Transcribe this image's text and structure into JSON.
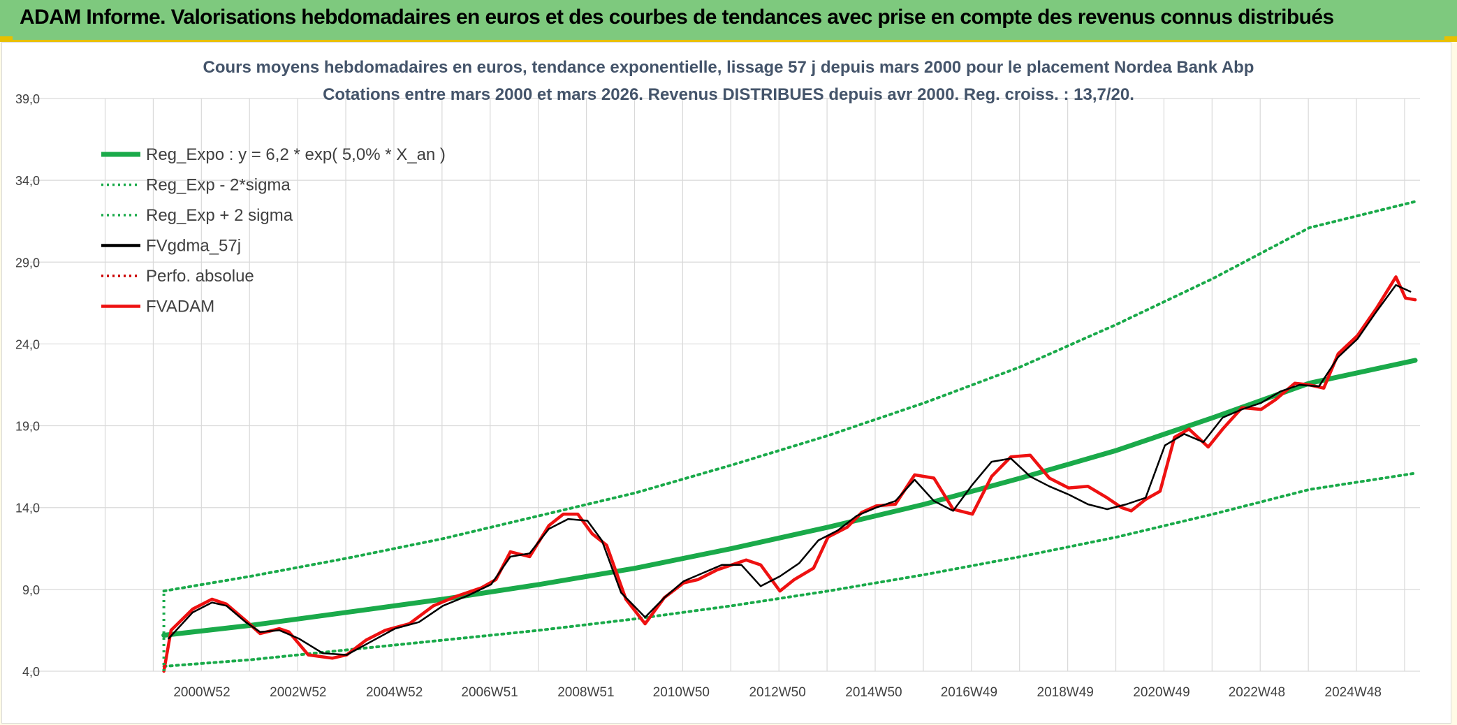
{
  "header": {
    "title": "ADAM Informe. Valorisations hebdomadaires en euros et des courbes de tendances avec prise en compte des revenus connus distribués",
    "color": "#7ec97e"
  },
  "colors": {
    "reg_expo": "#1aaa4a",
    "sigma_bands": "#1aaa4a",
    "gdma": "#000000",
    "fvadam": "#ee1111",
    "perfo": "#cc0000",
    "grid": "#d9d9d9",
    "text": "#404040",
    "title_text": "#44546a"
  },
  "chart_data": {
    "type": "line",
    "title": "Cours moyens hebdomadaires en euros, tendance exponentielle, lissage 57 j depuis mars 2000 pour le placement Nordea Bank Abp",
    "subtitle": "Cotations entre mars 2000 et mars 2026. Revenus DISTRIBUES depuis avr 2000. Reg. croiss. : 13,7/20.",
    "xlabel": "",
    "ylabel": "",
    "ylim": [
      4.0,
      39.0
    ],
    "yticks": [
      "4,0",
      "9,0",
      "14,0",
      "19,0",
      "24,0",
      "29,0",
      "34,0",
      "39,0"
    ],
    "yvalues": [
      4,
      9,
      14,
      19,
      24,
      29,
      34,
      39
    ],
    "xlim": [
      1998.0,
      2026.3
    ],
    "xticks": [
      {
        "label": "2000W52",
        "x": 2000.99
      },
      {
        "label": "2002W52",
        "x": 2002.99
      },
      {
        "label": "2004W52",
        "x": 2004.99
      },
      {
        "label": "2006W51",
        "x": 2006.97
      },
      {
        "label": "2008W51",
        "x": 2008.97
      },
      {
        "label": "2010W50",
        "x": 2010.95
      },
      {
        "label": "2012W50",
        "x": 2012.95
      },
      {
        "label": "2014W50",
        "x": 2014.95
      },
      {
        "label": "2016W49",
        "x": 2016.93
      },
      {
        "label": "2018W49",
        "x": 2018.93
      },
      {
        "label": "2020W49",
        "x": 2020.93
      },
      {
        "label": "2022W48",
        "x": 2022.91
      },
      {
        "label": "2024W48",
        "x": 2024.91
      }
    ],
    "grid": true,
    "legend_position": "top-left",
    "legend": [
      {
        "name": "Reg_Expo : y = 6,2 * exp( 5,0% *  X_an )",
        "style": "thick-solid",
        "color": "#1aaa4a"
      },
      {
        "name": "Reg_Exp - 2*sigma",
        "style": "dotted",
        "color": "#1aaa4a"
      },
      {
        "name": "Reg_Exp + 2 sigma",
        "style": "dotted",
        "color": "#1aaa4a"
      },
      {
        "name": "FVgdma_57j",
        "style": "solid",
        "color": "#000000"
      },
      {
        "name": "Perfo. absolue",
        "style": "dotted",
        "color": "#cc0000"
      },
      {
        "name": "FVADAM",
        "style": "solid",
        "color": "#ee1111"
      }
    ],
    "series": [
      {
        "name": "Reg_Expo : y = 6,2 * exp( 5,0% *  X_an )",
        "x": [
          2000.2,
          2002.0,
          2004.0,
          2006.0,
          2008.0,
          2010.0,
          2012.0,
          2014.0,
          2016.0,
          2018.0,
          2020.0,
          2022.0,
          2024.0,
          2026.2
        ],
        "values": [
          6.2,
          6.8,
          7.6,
          8.4,
          9.3,
          10.3,
          11.5,
          12.8,
          14.2,
          15.8,
          17.5,
          19.5,
          21.6,
          23.0
        ]
      },
      {
        "name": "Reg_Exp - 2*sigma",
        "x": [
          2000.2,
          2002.0,
          2004.0,
          2006.0,
          2008.0,
          2010.0,
          2012.0,
          2014.0,
          2016.0,
          2018.0,
          2020.0,
          2022.0,
          2024.0,
          2026.2
        ],
        "values": [
          4.3,
          4.7,
          5.3,
          5.9,
          6.5,
          7.2,
          8.0,
          8.9,
          9.9,
          11.0,
          12.2,
          13.6,
          15.1,
          16.1
        ]
      },
      {
        "name": "Reg_Exp + 2 sigma",
        "x": [
          2000.2,
          2002.0,
          2004.0,
          2006.0,
          2008.0,
          2010.0,
          2012.0,
          2014.0,
          2016.0,
          2018.0,
          2020.0,
          2022.0,
          2024.0,
          2026.2
        ],
        "values": [
          8.9,
          9.8,
          10.9,
          12.1,
          13.5,
          14.9,
          16.6,
          18.4,
          20.4,
          22.6,
          25.2,
          28.0,
          31.1,
          32.7
        ]
      },
      {
        "name": "FVADAM",
        "x": [
          2000.2,
          2000.35,
          2000.8,
          2001.2,
          2001.5,
          2001.9,
          2002.2,
          2002.6,
          2002.8,
          2003.2,
          2003.7,
          2004.0,
          2004.4,
          2004.8,
          2005.3,
          2005.8,
          2006.3,
          2006.8,
          2007.1,
          2007.4,
          2007.8,
          2008.2,
          2008.5,
          2008.8,
          2009.1,
          2009.4,
          2009.8,
          2010.2,
          2010.6,
          2011.0,
          2011.3,
          2011.7,
          2012.0,
          2012.3,
          2012.6,
          2013.0,
          2013.3,
          2013.7,
          2014.0,
          2014.4,
          2014.7,
          2015.0,
          2015.4,
          2015.8,
          2016.2,
          2016.6,
          2017.0,
          2017.4,
          2017.8,
          2018.2,
          2018.6,
          2019.0,
          2019.4,
          2019.8,
          2020.1,
          2020.3,
          2020.6,
          2020.9,
          2021.2,
          2021.5,
          2021.9,
          2022.2,
          2022.6,
          2023.0,
          2023.3,
          2023.7,
          2024.0,
          2024.3,
          2024.6,
          2025.0,
          2025.4,
          2025.8,
          2026.0,
          2026.2
        ],
        "values": [
          4.0,
          6.5,
          7.8,
          8.4,
          8.1,
          7.1,
          6.3,
          6.6,
          6.4,
          5.0,
          4.8,
          5.0,
          5.9,
          6.5,
          6.9,
          8.0,
          8.6,
          9.1,
          9.6,
          11.3,
          11.0,
          12.9,
          13.6,
          13.6,
          12.4,
          11.7,
          8.4,
          6.9,
          8.5,
          9.4,
          9.6,
          10.2,
          10.5,
          10.8,
          10.5,
          8.9,
          9.6,
          10.3,
          12.2,
          12.8,
          13.7,
          14.1,
          14.2,
          16.0,
          15.8,
          13.9,
          13.6,
          15.9,
          17.1,
          17.2,
          15.8,
          15.2,
          15.3,
          14.6,
          14.0,
          13.8,
          14.5,
          15.0,
          18.3,
          18.8,
          17.7,
          18.8,
          20.1,
          20.0,
          20.6,
          21.6,
          21.5,
          21.3,
          23.4,
          24.5,
          26.2,
          28.1,
          26.8,
          26.7
        ]
      },
      {
        "name": "FVgdma_57j",
        "x": [
          2000.3,
          2000.8,
          2001.2,
          2001.5,
          2001.9,
          2002.2,
          2002.6,
          2003.0,
          2003.5,
          2004.0,
          2004.5,
          2005.0,
          2005.5,
          2006.0,
          2006.5,
          2007.0,
          2007.4,
          2007.8,
          2008.2,
          2008.6,
          2009.0,
          2009.3,
          2009.7,
          2010.2,
          2010.6,
          2011.0,
          2011.4,
          2011.8,
          2012.2,
          2012.6,
          2013.0,
          2013.4,
          2013.8,
          2014.2,
          2014.6,
          2015.0,
          2015.4,
          2015.8,
          2016.2,
          2016.6,
          2017.0,
          2017.4,
          2017.8,
          2018.2,
          2018.6,
          2019.0,
          2019.4,
          2019.8,
          2020.2,
          2020.6,
          2021.0,
          2021.4,
          2021.8,
          2022.2,
          2022.6,
          2023.0,
          2023.4,
          2023.8,
          2024.2,
          2024.6,
          2025.0,
          2025.4,
          2025.8,
          2026.1
        ],
        "values": [
          6.0,
          7.6,
          8.2,
          8.0,
          7.0,
          6.4,
          6.5,
          6.0,
          5.1,
          5.0,
          5.8,
          6.6,
          7.0,
          8.0,
          8.6,
          9.3,
          11.0,
          11.2,
          12.7,
          13.3,
          13.2,
          12.0,
          8.8,
          7.3,
          8.5,
          9.5,
          10.0,
          10.5,
          10.5,
          9.2,
          9.8,
          10.6,
          12.0,
          12.6,
          13.5,
          14.0,
          14.4,
          15.7,
          14.4,
          13.8,
          15.4,
          16.8,
          17.0,
          15.9,
          15.3,
          14.8,
          14.2,
          13.9,
          14.2,
          14.6,
          17.8,
          18.5,
          18.0,
          19.5,
          20.0,
          20.4,
          21.1,
          21.5,
          21.4,
          23.2,
          24.3,
          26.0,
          27.6,
          27.2
        ]
      }
    ]
  }
}
